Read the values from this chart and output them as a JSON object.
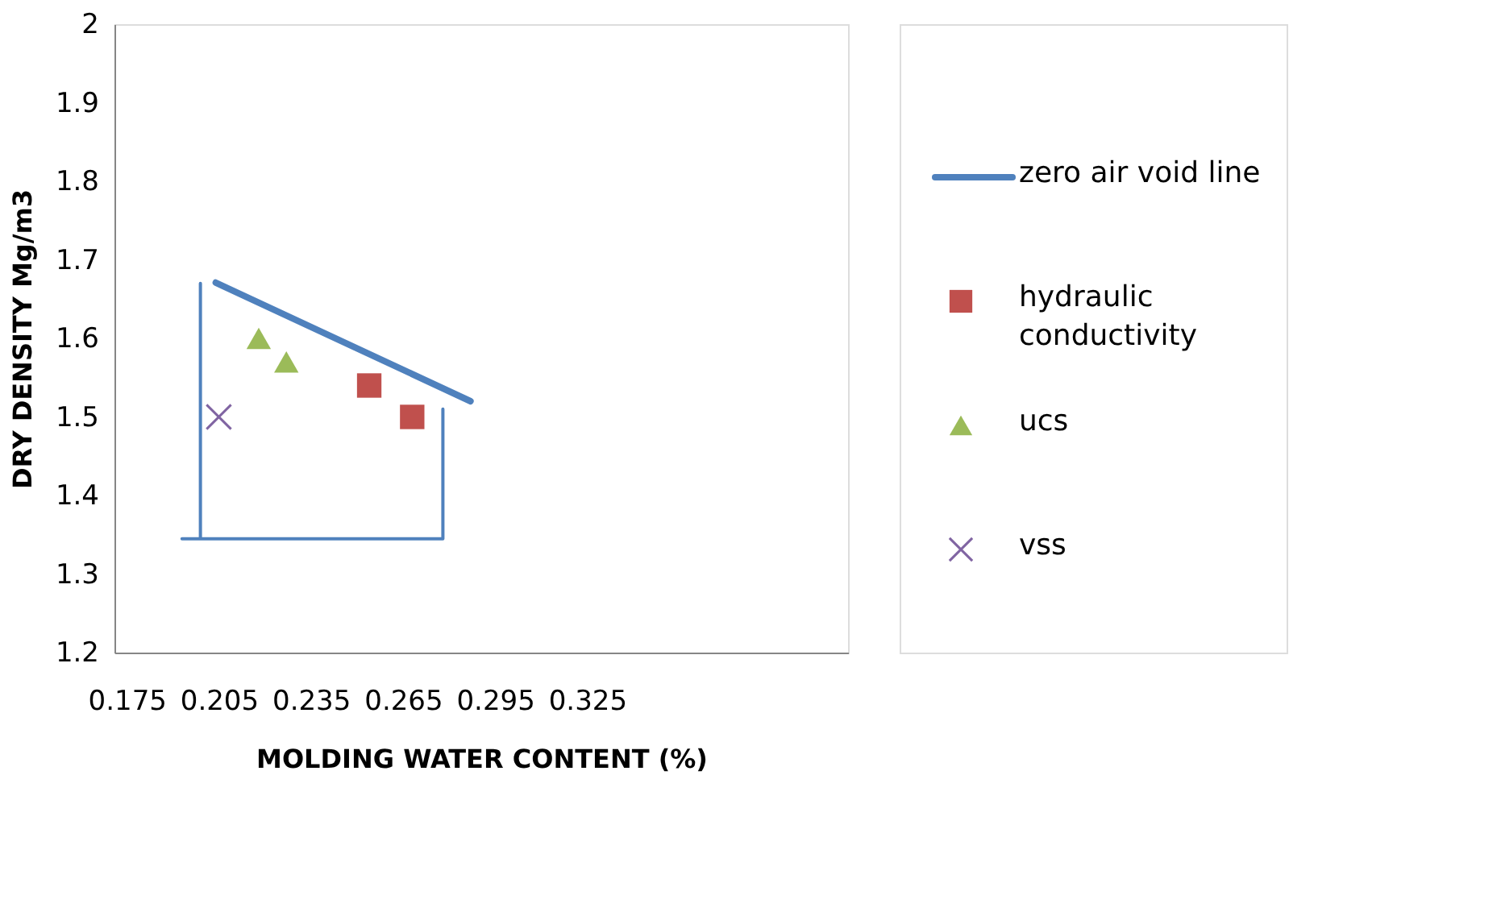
{
  "chart_data": {
    "type": "scatter",
    "xlabel": "MOLDING WATER CONTENT (%)",
    "ylabel": "DRY DENSITY Mg/m3",
    "xlim": [
      0.171,
      0.41
    ],
    "xticks": [
      0.175,
      0.205,
      0.235,
      0.265,
      0.295,
      0.325
    ],
    "ylim": [
      1.2,
      2
    ],
    "yticks": [
      1.2,
      1.3,
      1.4,
      1.5,
      1.6,
      1.7,
      1.8,
      1.9,
      2
    ],
    "grid": false,
    "legend": "right",
    "series": [
      {
        "name": "zero air void line",
        "type": "line",
        "color": "#4f81bd",
        "marker": "none",
        "x": [
          0.204,
          0.287
        ],
        "values": [
          1.671,
          1.52
        ]
      },
      {
        "name": "hydraulic conductivity",
        "type": "scatter",
        "color": "#c0504d",
        "marker": "square",
        "x": [
          0.254,
          0.268
        ],
        "values": [
          1.54,
          1.5
        ]
      },
      {
        "name": "ucs",
        "type": "scatter",
        "color": "#9bbb59",
        "marker": "triangle",
        "x": [
          0.218,
          0.227
        ],
        "values": [
          1.6,
          1.57
        ]
      },
      {
        "name": "vss",
        "type": "scatter",
        "color": "#8064a2",
        "marker": "cross",
        "x": [
          0.205
        ],
        "values": [
          1.5
        ]
      },
      {
        "type": "line",
        "color": "#4f81bd",
        "marker": "none",
        "x": [
          0.199,
          0.199,
          0.193,
          0.278,
          0.278
        ],
        "values": [
          1.67,
          1.345,
          1.345,
          1.345,
          1.51
        ]
      }
    ]
  }
}
